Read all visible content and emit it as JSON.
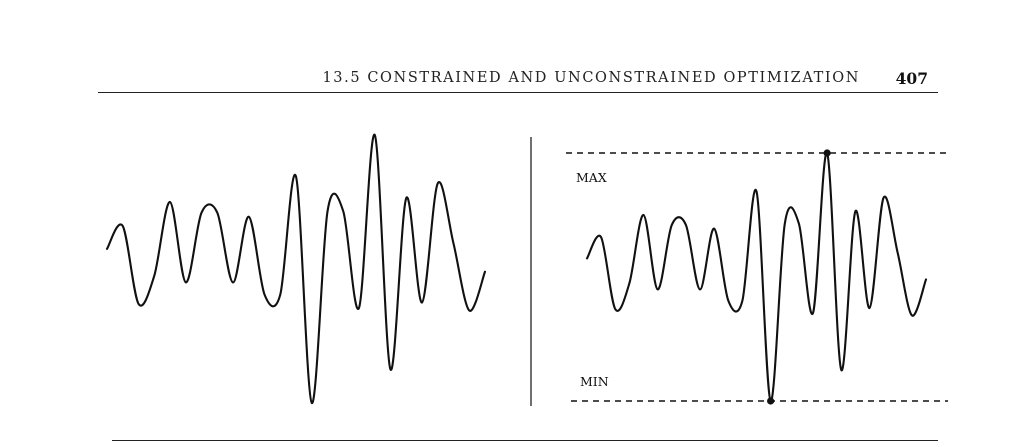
{
  "header": {
    "section_title": "13.5  CONSTRAINED AND UNCONSTRAINED OPTIMIZATION",
    "page_number": "407"
  },
  "figure": {
    "max_label": "MAX",
    "min_label": "MIN",
    "line_color": "#111111",
    "curve_profile": [
      0.15,
      0.32,
      -0.26,
      -0.05,
      0.5,
      -0.1,
      0.42,
      0.42,
      -0.1,
      0.39,
      -0.19,
      -0.19,
      0.69,
      -1.0,
      0.43,
      0.43,
      -0.29,
      1.0,
      -0.75,
      0.53,
      -0.25,
      0.64,
      0.19,
      -0.31,
      -0.02
    ]
  }
}
